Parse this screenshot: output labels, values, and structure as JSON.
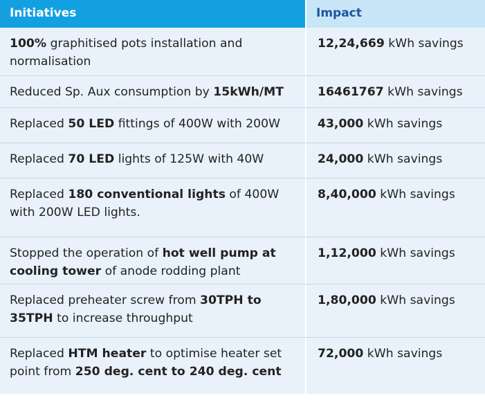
{
  "headers": {
    "initiatives": "Initiatives",
    "impact": "Impact"
  },
  "rows": [
    {
      "parts": [
        {
          "t": "100%",
          "b": true
        },
        {
          "t": " graphitised pots installation and normalisation",
          "b": false
        }
      ],
      "impact": [
        {
          "t": "12,24,669",
          "b": true
        },
        {
          "t": " kWh savings",
          "b": false
        }
      ]
    },
    {
      "parts": [
        {
          "t": "Reduced Sp. Aux consumption by ",
          "b": false
        },
        {
          "t": "15kWh/MT",
          "b": true
        }
      ],
      "impact": [
        {
          "t": "16461767",
          "b": true
        },
        {
          "t": " kWh savings",
          "b": false
        }
      ]
    },
    {
      "parts": [
        {
          "t": "Replaced ",
          "b": false
        },
        {
          "t": "50 LED",
          "b": true
        },
        {
          "t": " fittings of 400W with 200W",
          "b": false
        }
      ],
      "impact": [
        {
          "t": "43,000",
          "b": true
        },
        {
          "t": " kWh savings",
          "b": false
        }
      ]
    },
    {
      "parts": [
        {
          "t": "Replaced ",
          "b": false
        },
        {
          "t": "70 LED",
          "b": true
        },
        {
          "t": " lights of 125W with 40W",
          "b": false
        }
      ],
      "impact": [
        {
          "t": "24,000",
          "b": true
        },
        {
          "t": " kWh savings",
          "b": false
        }
      ]
    },
    {
      "parts": [
        {
          "t": "Replaced ",
          "b": false
        },
        {
          "t": "180 conventional lights",
          "b": true
        },
        {
          "t": " of 400W with 200W LED lights.",
          "b": false
        }
      ],
      "impact": [
        {
          "t": "8,40,000",
          "b": true
        },
        {
          "t": " kWh savings",
          "b": false
        }
      ]
    },
    {
      "parts": [
        {
          "t": "Stopped the operation of ",
          "b": false
        },
        {
          "t": "hot well pump at cooling tower",
          "b": true
        },
        {
          "t": " of anode rodding plant",
          "b": false
        }
      ],
      "impact": [
        {
          "t": "1,12,000",
          "b": true
        },
        {
          "t": " kWh savings",
          "b": false
        }
      ]
    },
    {
      "parts": [
        {
          "t": "Replaced preheater screw from ",
          "b": false
        },
        {
          "t": "30TPH to 35TPH",
          "b": true
        },
        {
          "t": " to increase throughput",
          "b": false
        }
      ],
      "impact": [
        {
          "t": "1,80,000",
          "b": true
        },
        {
          "t": " kWh savings",
          "b": false
        }
      ]
    },
    {
      "parts": [
        {
          "t": "Replaced ",
          "b": false
        },
        {
          "t": "HTM heater",
          "b": true
        },
        {
          "t": " to optimise heater set point from ",
          "b": false
        },
        {
          "t": "250 deg. cent to 240 deg. cent",
          "b": true
        }
      ],
      "impact": [
        {
          "t": "72,000",
          "b": true
        },
        {
          "t": " kWh savings",
          "b": false
        }
      ]
    }
  ]
}
